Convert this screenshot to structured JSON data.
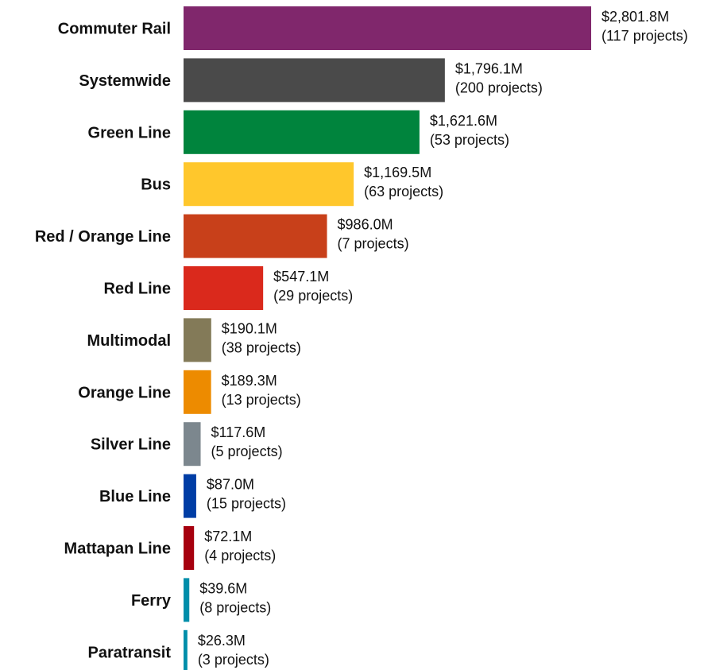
{
  "chart_data": {
    "type": "bar",
    "orientation": "horizontal",
    "title": "",
    "xlabel": "",
    "ylabel": "",
    "unit": "M",
    "grid": false,
    "legend": "none",
    "xlim": [
      0,
      2801.8
    ],
    "categories": [
      "Commuter Rail",
      "Systemwide",
      "Green Line",
      "Bus",
      "Red / Orange Line",
      "Red Line",
      "Multimodal",
      "Orange Line",
      "Silver Line",
      "Blue Line",
      "Mattapan Line",
      "Ferry",
      "Paratransit"
    ],
    "values": [
      2801.8,
      1796.1,
      1621.6,
      1169.5,
      986.0,
      547.1,
      190.1,
      189.3,
      117.6,
      87.0,
      72.1,
      39.6,
      26.3
    ],
    "value_labels": [
      "$2,801.8M",
      "$1,796.1M",
      "$1,621.6M",
      "$1,169.5M",
      "$986.0M",
      "$547.1M",
      "$190.1M",
      "$189.3M",
      "$117.6M",
      "$87.0M",
      "$72.1M",
      "$39.6M",
      "$26.3M"
    ],
    "project_labels": [
      "(117 projects)",
      "(200 projects)",
      "(53 projects)",
      "(63 projects)",
      "(7 projects)",
      "(29 projects)",
      "(38 projects)",
      "(13 projects)",
      "(5 projects)",
      "(15 projects)",
      "(4 projects)",
      "(8 projects)",
      "(3 projects)"
    ],
    "projects": [
      117,
      200,
      53,
      63,
      7,
      29,
      38,
      13,
      5,
      15,
      4,
      8,
      3
    ],
    "colors": [
      "#80276C",
      "#4A4A4A",
      "#00843D",
      "#FFC72C",
      "#C8401A",
      "#DA291C",
      "#837A58",
      "#ED8B00",
      "#7C878E",
      "#003DA5",
      "#A6000E",
      "#008EAA",
      "#008EAA"
    ]
  }
}
